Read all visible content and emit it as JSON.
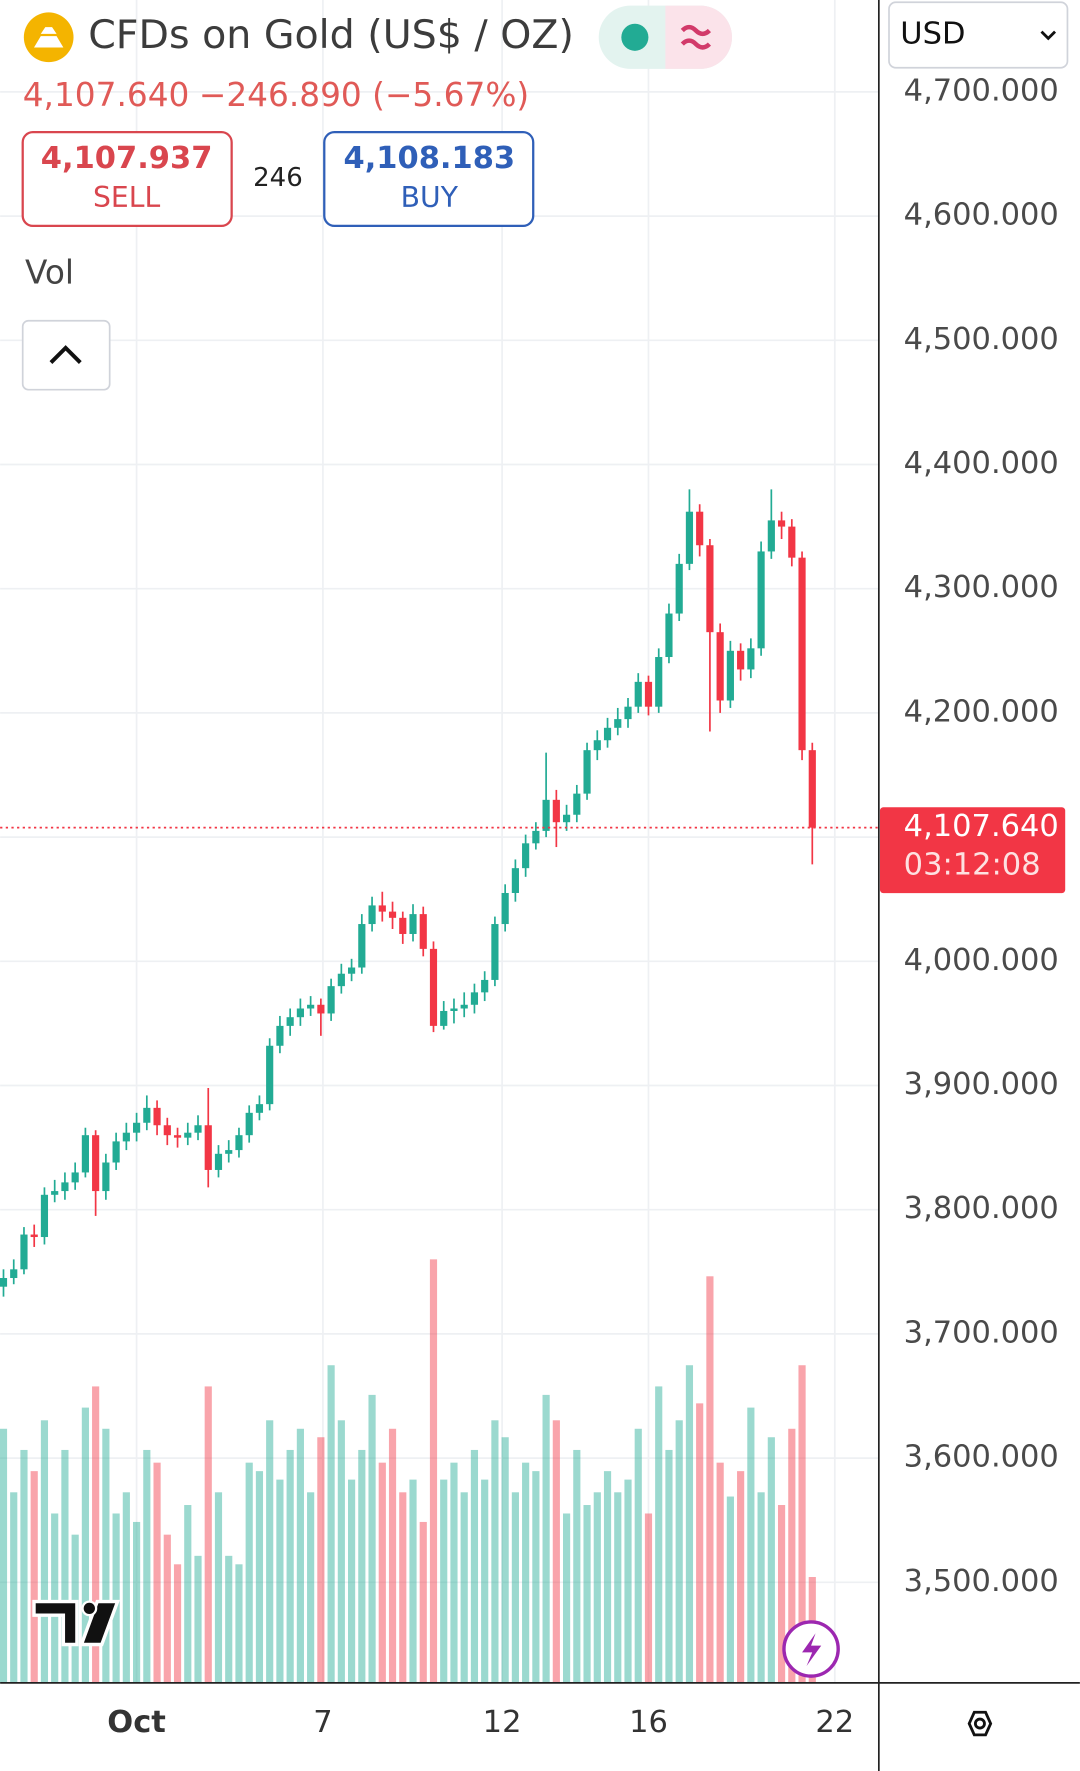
{
  "header": {
    "title": "CFDs on Gold (US$ / OZ)",
    "price": "4,107.640",
    "change": "−246.890 (−5.67%)",
    "sell": {
      "price": "4,107.937",
      "label": "SELL"
    },
    "spread": "246",
    "buy": {
      "price": "4,108.183",
      "label": "BUY"
    },
    "currency": "USD",
    "volume_label": "Vol"
  },
  "chart_data": {
    "type": "candlestick",
    "up_color": "#22ab94",
    "down_color": "#f23645",
    "ylim": [
      3419,
      4774
    ],
    "xlim": [
      -0.33,
      85.5
    ],
    "yticks": [
      {
        "value": 3500,
        "label": "3,500.000"
      },
      {
        "value": 3600,
        "label": "3,600.000"
      },
      {
        "value": 3700,
        "label": "3,700.000"
      },
      {
        "value": 3800,
        "label": "3,800.000"
      },
      {
        "value": 3900,
        "label": "3,900.000"
      },
      {
        "value": 4000,
        "label": "4,000.000"
      },
      {
        "value": 4100,
        "label": "4,100.000"
      },
      {
        "value": 4200,
        "label": "4,200.000"
      },
      {
        "value": 4300,
        "label": "4,300.000"
      },
      {
        "value": 4400,
        "label": "4,400.000"
      },
      {
        "value": 4500,
        "label": "4,500.000"
      },
      {
        "value": 4600,
        "label": "4,600.000"
      },
      {
        "value": 4700,
        "label": "4,700.000"
      }
    ],
    "xticks": [
      {
        "value": 13.0,
        "label": "Oct"
      },
      {
        "value": 31.2,
        "label": "7"
      },
      {
        "value": 48.7,
        "label": "12"
      },
      {
        "value": 63.0,
        "label": "16"
      },
      {
        "value": 81.2,
        "label": "22"
      }
    ],
    "grid": true,
    "last_price": {
      "value": 4107.64,
      "label": "4,107.640",
      "countdown": "03:12:08"
    },
    "open": [
      3738,
      3745,
      3752,
      3780,
      3778,
      3812,
      3815,
      3822,
      3830,
      3860,
      3815,
      3838,
      3855,
      3862,
      3870,
      3882,
      3868,
      3860,
      3858,
      3862,
      3868,
      3832,
      3845,
      3848,
      3860,
      3878,
      3885,
      3932,
      3948,
      3955,
      3962,
      3965,
      3958,
      3980,
      3990,
      3995,
      4030,
      4045,
      4040,
      4035,
      4022,
      4038,
      4010,
      3948,
      3960,
      3962,
      3965,
      3975,
      3985,
      4030,
      4055,
      4075,
      4095,
      4105,
      4130,
      4112,
      4118,
      4135,
      4170,
      4178,
      4188,
      4195,
      4205,
      4225,
      4205,
      4245,
      4280,
      4320,
      4362,
      4335,
      4265,
      4210,
      4250,
      4235,
      4252,
      4330,
      4355,
      4350,
      4325,
      4170
    ],
    "high": [
      3752,
      3760,
      3786,
      3788,
      3818,
      3824,
      3830,
      3838,
      3866,
      3864,
      3845,
      3862,
      3870,
      3878,
      3892,
      3888,
      3874,
      3866,
      3870,
      3876,
      3898,
      3852,
      3856,
      3866,
      3884,
      3892,
      3938,
      3956,
      3962,
      3970,
      3972,
      3970,
      3986,
      3998,
      4002,
      4038,
      4052,
      4056,
      4048,
      4040,
      4046,
      4044,
      4016,
      3968,
      3970,
      3975,
      3982,
      3992,
      4036,
      4062,
      4082,
      4102,
      4112,
      4168,
      4138,
      4126,
      4142,
      4176,
      4186,
      4196,
      4204,
      4212,
      4232,
      4230,
      4252,
      4288,
      4328,
      4380,
      4368,
      4340,
      4272,
      4258,
      4256,
      4260,
      4338,
      4380,
      4362,
      4356,
      4330,
      4176
    ],
    "low": [
      3730,
      3740,
      3748,
      3770,
      3772,
      3806,
      3808,
      3816,
      3826,
      3795,
      3808,
      3832,
      3848,
      3855,
      3864,
      3860,
      3852,
      3850,
      3852,
      3856,
      3818,
      3826,
      3838,
      3842,
      3854,
      3872,
      3880,
      3926,
      3940,
      3948,
      3956,
      3940,
      3952,
      3974,
      3984,
      3990,
      4024,
      4032,
      4026,
      4014,
      4016,
      4004,
      3943,
      3945,
      3950,
      3955,
      3958,
      3968,
      3980,
      4024,
      4048,
      4068,
      4090,
      4100,
      4092,
      4105,
      4112,
      4130,
      4162,
      4172,
      4182,
      4188,
      4200,
      4198,
      4200,
      4240,
      4274,
      4315,
      4326,
      4185,
      4200,
      4204,
      4226,
      4228,
      4246,
      4324,
      4340,
      4318,
      4162,
      4078
    ],
    "close": [
      3745,
      3752,
      3780,
      3778,
      3812,
      3815,
      3822,
      3830,
      3860,
      3815,
      3838,
      3855,
      3862,
      3870,
      3882,
      3868,
      3860,
      3858,
      3862,
      3868,
      3832,
      3845,
      3848,
      3860,
      3878,
      3885,
      3932,
      3948,
      3955,
      3962,
      3965,
      3958,
      3980,
      3990,
      3995,
      4030,
      4045,
      4040,
      4035,
      4022,
      4038,
      4010,
      3948,
      3960,
      3962,
      3965,
      3975,
      3985,
      4030,
      4055,
      4075,
      4095,
      4105,
      4130,
      4112,
      4118,
      4135,
      4170,
      4178,
      4188,
      4195,
      4205,
      4225,
      4205,
      4245,
      4280,
      4320,
      4362,
      4335,
      4265,
      4210,
      4250,
      4235,
      4252,
      4330,
      4355,
      4350,
      4325,
      4170,
      4107.64
    ],
    "volume": [
      60,
      45,
      55,
      50,
      62,
      40,
      55,
      35,
      65,
      70,
      60,
      40,
      45,
      38,
      55,
      52,
      35,
      28,
      42,
      30,
      70,
      45,
      30,
      28,
      52,
      50,
      62,
      48,
      55,
      60,
      45,
      58,
      75,
      62,
      48,
      55,
      68,
      52,
      60,
      45,
      48,
      38,
      100,
      48,
      52,
      45,
      55,
      48,
      62,
      58,
      45,
      52,
      50,
      68,
      62,
      40,
      55,
      42,
      45,
      50,
      45,
      48,
      60,
      40,
      70,
      55,
      62,
      75,
      66,
      96,
      52,
      44,
      50,
      65,
      45,
      58,
      42,
      60,
      75,
      25
    ]
  }
}
